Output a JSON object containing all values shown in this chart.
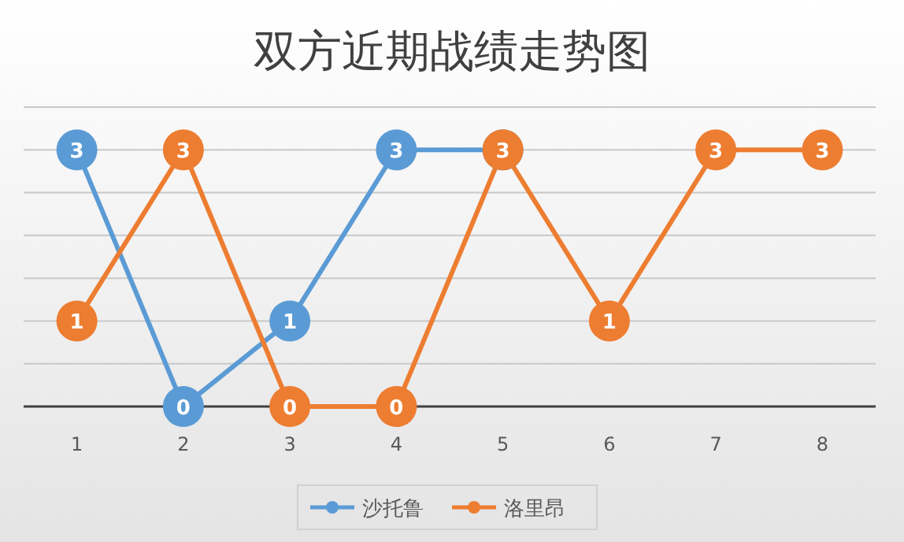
{
  "chart_data": {
    "type": "line",
    "title": "双方近期战绩走势图",
    "categories": [
      "1",
      "2",
      "3",
      "4",
      "5",
      "6",
      "7",
      "8"
    ],
    "series": [
      {
        "name": "沙托鲁",
        "color": "#5b9bd5",
        "values": [
          3,
          0,
          1,
          3,
          3,
          null,
          null,
          null
        ],
        "value_labels": [
          "3",
          "0",
          "1",
          "3",
          null,
          null,
          null,
          null
        ]
      },
      {
        "name": "洛里昂",
        "color": "#ed7d31",
        "values": [
          1,
          3,
          0,
          0,
          3,
          1,
          3,
          3
        ],
        "value_labels": [
          "1",
          "3",
          "0",
          "0",
          "3",
          "1",
          "3",
          "3"
        ]
      }
    ],
    "ylim": [
      0,
      3.5
    ],
    "yticks": [
      {
        "value": 0,
        "label": null
      },
      {
        "value": 0.5,
        "label": null
      },
      {
        "value": 1,
        "label": null
      },
      {
        "value": 1.5,
        "label": null
      },
      {
        "value": 2,
        "label": null
      },
      {
        "value": 2.5,
        "label": null
      },
      {
        "value": 3,
        "label": null
      },
      {
        "value": 3.5,
        "label": null
      }
    ],
    "grid": "y",
    "legend": "bottom",
    "marker": "circle",
    "tick_labels": "x"
  }
}
